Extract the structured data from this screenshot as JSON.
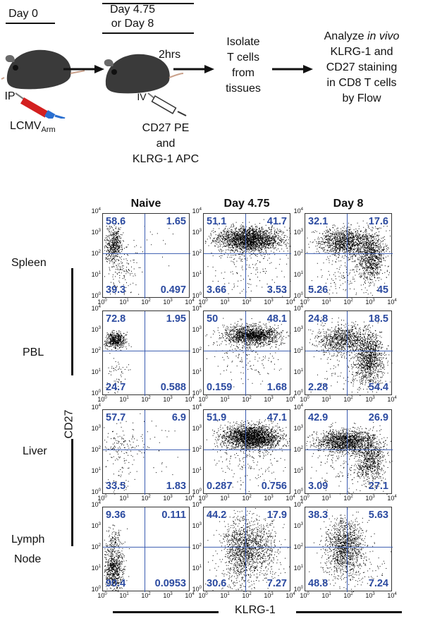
{
  "schematic": {
    "step1": {
      "day": "Day 0",
      "route": "IP",
      "virus": "LCMV",
      "virus_sub": "Arm"
    },
    "step2": {
      "day_line1": "Day 4.75",
      "day_line2": "or Day 8",
      "route": "IV",
      "time": "2hrs",
      "ab_line1": "CD27 PE",
      "ab_line2": "and",
      "ab_line3": "KLRG-1 APC"
    },
    "step3": {
      "line1": "Isolate",
      "line2": "T cells",
      "line3": "from",
      "line4": "tissues"
    },
    "step4": {
      "line1_pre": "Analyze ",
      "line1_italic": "in vivo",
      "line2": "KLRG-1 and",
      "line3": "CD27 staining",
      "line4": "in CD8 T cells",
      "line5": "by Flow"
    }
  },
  "grid": {
    "columns": [
      "Naive",
      "Day 4.75",
      "Day 8"
    ],
    "rows": [
      {
        "label1": "Spleen",
        "label2": ""
      },
      {
        "label1": "PBL",
        "label2": ""
      },
      {
        "label1": "Liver",
        "label2": ""
      },
      {
        "label1": "Lymph",
        "label2": "Node"
      }
    ],
    "y_axis_label": "CD27",
    "x_axis_label": "KLRG-1",
    "tick_labels": [
      "0",
      "1",
      "2",
      "3",
      "4"
    ],
    "tick_base": "10",
    "quadrants": [
      [
        [
          "58.6",
          "1.65",
          "39.3",
          "0.497"
        ],
        [
          "51.1",
          "41.7",
          "3.66",
          "3.53"
        ],
        [
          "32.1",
          "17.6",
          "5.26",
          "45"
        ]
      ],
      [
        [
          "72.8",
          "1.95",
          "24.7",
          "0.588"
        ],
        [
          "50",
          "48.1",
          "0.159",
          "1.68"
        ],
        [
          "24.8",
          "18.5",
          "2.28",
          "54.4"
        ]
      ],
      [
        [
          "57.7",
          "6.9",
          "33.5",
          "1.83"
        ],
        [
          "51.9",
          "47.1",
          "0.287",
          "0.756"
        ],
        [
          "42.9",
          "26.9",
          "3.09",
          "27.1"
        ]
      ],
      [
        [
          "9.36",
          "0.111",
          "90.4",
          "0.0953"
        ],
        [
          "44.2",
          "17.9",
          "30.6",
          "7.27"
        ],
        [
          "38.3",
          "5.63",
          "48.8",
          "7.24"
        ]
      ]
    ],
    "gate_color": "#3a5bb0",
    "label_color": "#2b4aa0"
  }
}
